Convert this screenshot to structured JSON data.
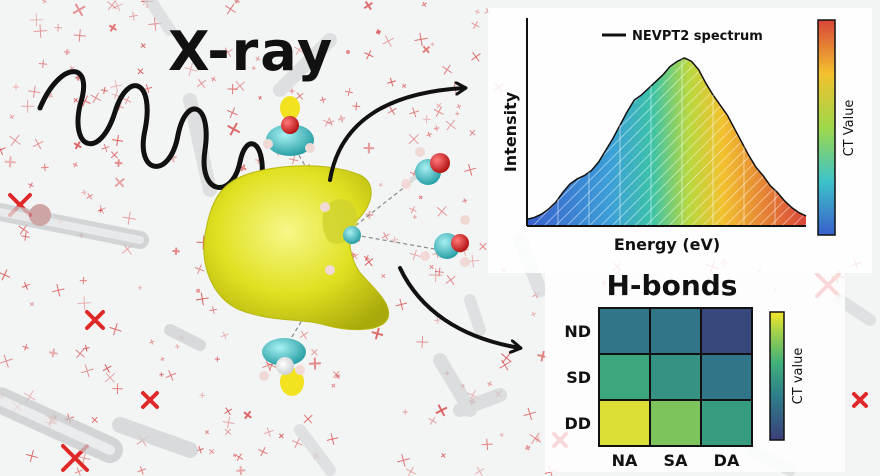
{
  "title": "X-ray",
  "spectrum_panel": {
    "legend": "NEVPT2 spectrum",
    "xlabel": "Energy (eV)",
    "ylabel": "Intensity",
    "colorbar_label": "CT Value"
  },
  "hbond_panel": {
    "title": "H-bonds",
    "colorbar_label": "CT value"
  },
  "chart_data": [
    {
      "type": "area",
      "legend": "NEVPT2 spectrum",
      "xlabel": "Energy (eV)",
      "ylabel": "Intensity",
      "series": [
        {
          "name": "NEVPT2 spectrum",
          "values": [
            0.04,
            0.05,
            0.07,
            0.1,
            0.14,
            0.2,
            0.25,
            0.28,
            0.3,
            0.33,
            0.38,
            0.45,
            0.52,
            0.6,
            0.68,
            0.75,
            0.78,
            0.82,
            0.86,
            0.9,
            0.95,
            0.98,
            1.0,
            0.98,
            0.93,
            0.85,
            0.78,
            0.72,
            0.66,
            0.58,
            0.5,
            0.42,
            0.35,
            0.3,
            0.24,
            0.2,
            0.15,
            0.11,
            0.08,
            0.06
          ]
        }
      ],
      "grid": false,
      "legend_position": "top-right"
    },
    {
      "type": "heatmap",
      "title": "H-bonds",
      "rows": [
        "ND",
        "SD",
        "DD"
      ],
      "columns": [
        "NA",
        "SA",
        "DA"
      ],
      "values": [
        [
          0.3,
          0.3,
          0.05
        ],
        [
          0.55,
          0.45,
          0.3
        ],
        [
          0.95,
          0.75,
          0.5
        ]
      ],
      "colorbar_label": "CT value"
    }
  ],
  "colors": {
    "isosurface": "#e6e624",
    "water_o": "#d41d1d",
    "water_h": "#f0d8d8",
    "orbital_cyan": "#3cc3c8",
    "orbital_yellow": "#f3e21f"
  }
}
